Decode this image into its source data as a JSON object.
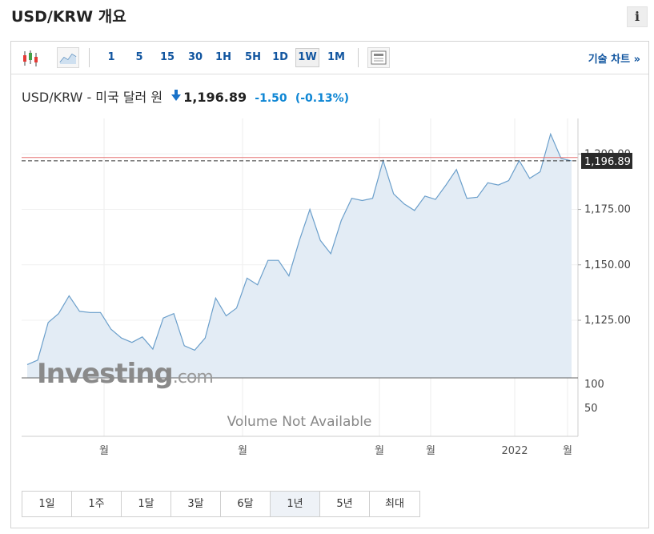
{
  "title": "USD/KRW 개요",
  "info_label": "i",
  "toolbar": {
    "timeframes": [
      {
        "label": "1",
        "active": false
      },
      {
        "label": "5",
        "active": false
      },
      {
        "label": "15",
        "active": false
      },
      {
        "label": "30",
        "active": false
      },
      {
        "label": "1H",
        "active": false
      },
      {
        "label": "5H",
        "active": false
      },
      {
        "label": "1D",
        "active": false
      },
      {
        "label": "1W",
        "active": true
      },
      {
        "label": "1M",
        "active": false
      }
    ],
    "icons": [
      "candlestick-icon",
      "area-chart-icon",
      "news-panel-icon"
    ],
    "technical_link": "기술 차트 »"
  },
  "quote": {
    "name": "USD/KRW - 미국 달러 원",
    "price": "1,196.89",
    "change": "-1.50",
    "change_pct": "(-0.13%)",
    "direction": "down"
  },
  "volume_message": "Volume Not Available",
  "watermark": "Investing.com",
  "range_buttons": [
    {
      "label": "1일",
      "active": false
    },
    {
      "label": "1주",
      "active": false
    },
    {
      "label": "1달",
      "active": false
    },
    {
      "label": "3달",
      "active": false
    },
    {
      "label": "6달",
      "active": false
    },
    {
      "label": "1년",
      "active": true
    },
    {
      "label": "5년",
      "active": false
    },
    {
      "label": "최대",
      "active": false
    }
  ],
  "colors": {
    "line": "#6b9fcb",
    "fill": "#e3ecf5",
    "ref_line": "#e57373",
    "link": "#1256a0",
    "change": "#0e86d4",
    "price_tag_bg": "#2b2b2b"
  },
  "chart_data": {
    "type": "area",
    "interval": "weekly",
    "y_ticks": [
      "1,200.00",
      "1,175.00",
      "1,150.00",
      "1,125.00"
    ],
    "y_tick_values": [
      1200,
      1175,
      1150,
      1125
    ],
    "ylim": [
      1099,
      1216
    ],
    "last_value_label": "1,196.89",
    "last_value": 1196.89,
    "reference_level": 1198.4,
    "x_tick_labels": [
      "월",
      "월",
      "월",
      "월",
      "2022",
      "월"
    ],
    "volume_ticks": [
      "100",
      "50"
    ],
    "values": [
      1105,
      1107,
      1124,
      1128,
      1136,
      1129,
      1128.5,
      1128.5,
      1121,
      1117,
      1115,
      1117.5,
      1112,
      1126,
      1128,
      1113.5,
      1111.5,
      1117,
      1135,
      1127,
      1130.5,
      1144,
      1141,
      1152,
      1152,
      1145,
      1161,
      1175,
      1161,
      1155,
      1170,
      1180,
      1179,
      1180,
      1197,
      1182,
      1177.5,
      1174.5,
      1181,
      1179.5,
      1186,
      1193,
      1180,
      1180.5,
      1187,
      1186,
      1188,
      1197,
      1189,
      1192,
      1209,
      1198,
      1196.89
    ]
  }
}
